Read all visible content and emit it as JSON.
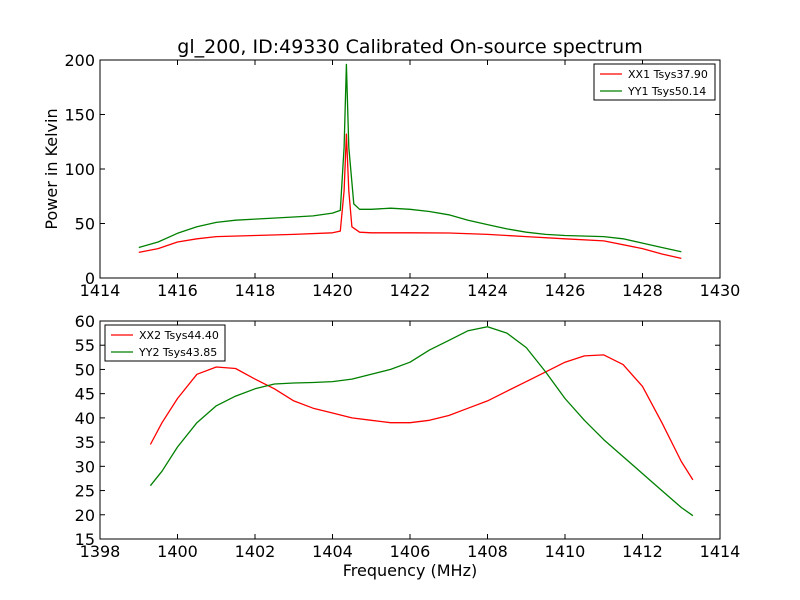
{
  "chart_data": [
    {
      "type": "line",
      "title": "gl_200, ID:49330 Calibrated On-source spectrum",
      "xlabel": "",
      "ylabel": "Power in Kelvin",
      "xlim": [
        1414,
        1430
      ],
      "ylim": [
        0,
        200
      ],
      "xticks": [
        1414,
        1416,
        1418,
        1420,
        1422,
        1424,
        1426,
        1428,
        1430
      ],
      "yticks": [
        0,
        50,
        100,
        150,
        200
      ],
      "legend_position": "upper right",
      "grid": false,
      "series": [
        {
          "name": "XX1 Tsys37.90",
          "color": "#ff0000",
          "points": [
            [
              1415,
              23.5
            ],
            [
              1415.5,
              27
            ],
            [
              1416,
              33
            ],
            [
              1416.5,
              36
            ],
            [
              1417,
              38
            ],
            [
              1418,
              39
            ],
            [
              1419,
              40
            ],
            [
              1420,
              41.5
            ],
            [
              1420.2,
              43
            ],
            [
              1420.3,
              80
            ],
            [
              1420.36,
              132
            ],
            [
              1420.42,
              80
            ],
            [
              1420.5,
              47
            ],
            [
              1420.7,
              42
            ],
            [
              1421,
              41.5
            ],
            [
              1422,
              41.5
            ],
            [
              1423,
              41.3
            ],
            [
              1424,
              40
            ],
            [
              1425,
              38
            ],
            [
              1426,
              36
            ],
            [
              1427,
              34
            ],
            [
              1428,
              27
            ],
            [
              1428.5,
              22
            ],
            [
              1429,
              18
            ]
          ]
        },
        {
          "name": "YY1 Tsys50.14",
          "color": "#008000",
          "points": [
            [
              1415,
              28
            ],
            [
              1415.5,
              33
            ],
            [
              1416,
              41
            ],
            [
              1416.5,
              47
            ],
            [
              1417,
              51
            ],
            [
              1417.5,
              53
            ],
            [
              1418,
              54
            ],
            [
              1419,
              56
            ],
            [
              1419.5,
              57
            ],
            [
              1420,
              59.5
            ],
            [
              1420.2,
              62
            ],
            [
              1420.3,
              120
            ],
            [
              1420.36,
              196
            ],
            [
              1420.42,
              120
            ],
            [
              1420.55,
              68
            ],
            [
              1420.7,
              63
            ],
            [
              1421,
              63
            ],
            [
              1421.5,
              64
            ],
            [
              1422,
              63
            ],
            [
              1422.5,
              61
            ],
            [
              1423,
              58
            ],
            [
              1423.5,
              53
            ],
            [
              1424,
              49
            ],
            [
              1424.5,
              45
            ],
            [
              1425,
              42
            ],
            [
              1425.5,
              40
            ],
            [
              1426,
              39
            ],
            [
              1427,
              38
            ],
            [
              1427.5,
              36
            ],
            [
              1428,
              32
            ],
            [
              1428.5,
              28
            ],
            [
              1429,
              24
            ]
          ]
        }
      ]
    },
    {
      "type": "line",
      "title": "",
      "xlabel": "Frequency (MHz)",
      "ylabel": "",
      "xlim": [
        1398,
        1414
      ],
      "ylim": [
        15,
        60
      ],
      "xticks": [
        1398,
        1400,
        1402,
        1404,
        1406,
        1408,
        1410,
        1412,
        1414
      ],
      "yticks": [
        15,
        20,
        25,
        30,
        35,
        40,
        45,
        50,
        55,
        60
      ],
      "legend_position": "upper left",
      "grid": false,
      "series": [
        {
          "name": "XX2 Tsys44.40",
          "color": "#ff0000",
          "points": [
            [
              1399.3,
              34.5
            ],
            [
              1399.6,
              39
            ],
            [
              1400,
              44
            ],
            [
              1400.5,
              49
            ],
            [
              1401,
              50.5
            ],
            [
              1401.5,
              50.2
            ],
            [
              1402,
              48
            ],
            [
              1402.5,
              46
            ],
            [
              1403,
              43.5
            ],
            [
              1403.5,
              42
            ],
            [
              1404,
              41
            ],
            [
              1404.5,
              40
            ],
            [
              1405,
              39.5
            ],
            [
              1405.5,
              39
            ],
            [
              1406,
              39
            ],
            [
              1406.5,
              39.5
            ],
            [
              1407,
              40.5
            ],
            [
              1407.5,
              42
            ],
            [
              1408,
              43.5
            ],
            [
              1408.5,
              45.5
            ],
            [
              1409,
              47.5
            ],
            [
              1409.5,
              49.5
            ],
            [
              1410,
              51.5
            ],
            [
              1410.5,
              52.8
            ],
            [
              1411,
              53
            ],
            [
              1411.5,
              51
            ],
            [
              1412,
              46.5
            ],
            [
              1412.5,
              39
            ],
            [
              1413,
              31
            ],
            [
              1413.3,
              27.2
            ]
          ]
        },
        {
          "name": "YY2 Tsys43.85",
          "color": "#008000",
          "points": [
            [
              1399.3,
              26
            ],
            [
              1399.6,
              29
            ],
            [
              1400,
              34
            ],
            [
              1400.5,
              39
            ],
            [
              1401,
              42.5
            ],
            [
              1401.5,
              44.5
            ],
            [
              1402,
              46
            ],
            [
              1402.5,
              47
            ],
            [
              1403,
              47.2
            ],
            [
              1403.5,
              47.3
            ],
            [
              1404,
              47.5
            ],
            [
              1404.5,
              48
            ],
            [
              1405,
              49
            ],
            [
              1405.5,
              50
            ],
            [
              1406,
              51.5
            ],
            [
              1406.5,
              54
            ],
            [
              1407,
              56
            ],
            [
              1407.5,
              58
            ],
            [
              1408,
              58.8
            ],
            [
              1408.5,
              57.5
            ],
            [
              1409,
              54.5
            ],
            [
              1409.5,
              49.5
            ],
            [
              1410,
              44
            ],
            [
              1410.5,
              39.5
            ],
            [
              1411,
              35.5
            ],
            [
              1411.5,
              32
            ],
            [
              1412,
              28.5
            ],
            [
              1412.5,
              25
            ],
            [
              1413,
              21.5
            ],
            [
              1413.3,
              19.8
            ]
          ]
        }
      ]
    }
  ]
}
